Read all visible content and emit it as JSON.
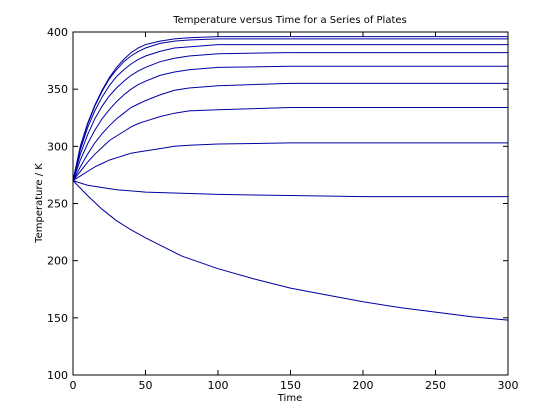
{
  "chart_data": {
    "type": "line",
    "title": "Temperature versus Time for a Series of Plates",
    "xlabel": "Time",
    "ylabel": "Temperature / K",
    "xlim": [
      0,
      300
    ],
    "ylim": [
      100,
      400
    ],
    "xticks": [
      0,
      50,
      100,
      150,
      200,
      250,
      300
    ],
    "yticks": [
      100,
      150,
      200,
      250,
      300,
      350,
      400
    ],
    "grid": false,
    "line_color": "#0000a0",
    "series": [
      {
        "values": [
          [
            0,
            270
          ],
          [
            5,
            300
          ],
          [
            10,
            320
          ],
          [
            15,
            336
          ],
          [
            20,
            349
          ],
          [
            25,
            360
          ],
          [
            30,
            369
          ],
          [
            35,
            376
          ],
          [
            40,
            382
          ],
          [
            45,
            386
          ],
          [
            50,
            389
          ],
          [
            60,
            392
          ],
          [
            70,
            394
          ],
          [
            80,
            395
          ],
          [
            100,
            396
          ],
          [
            150,
            396
          ],
          [
            200,
            396
          ],
          [
            250,
            396
          ],
          [
            300,
            396
          ]
        ]
      },
      {
        "values": [
          [
            0,
            270
          ],
          [
            5,
            299
          ],
          [
            10,
            319
          ],
          [
            15,
            335
          ],
          [
            20,
            348
          ],
          [
            25,
            359
          ],
          [
            30,
            367
          ],
          [
            35,
            374
          ],
          [
            40,
            379
          ],
          [
            45,
            383
          ],
          [
            50,
            386
          ],
          [
            60,
            390
          ],
          [
            70,
            392
          ],
          [
            80,
            393
          ],
          [
            100,
            394
          ],
          [
            150,
            394
          ],
          [
            200,
            394
          ],
          [
            250,
            394
          ],
          [
            300,
            394
          ]
        ]
      },
      {
        "values": [
          [
            0,
            270
          ],
          [
            5,
            297
          ],
          [
            10,
            316
          ],
          [
            15,
            331
          ],
          [
            20,
            343
          ],
          [
            25,
            353
          ],
          [
            30,
            361
          ],
          [
            35,
            367
          ],
          [
            40,
            372
          ],
          [
            45,
            376
          ],
          [
            50,
            379
          ],
          [
            60,
            383
          ],
          [
            70,
            386
          ],
          [
            80,
            387
          ],
          [
            100,
            389
          ],
          [
            150,
            389
          ],
          [
            200,
            389
          ],
          [
            250,
            389
          ],
          [
            300,
            389
          ]
        ]
      },
      {
        "values": [
          [
            0,
            270
          ],
          [
            5,
            293
          ],
          [
            10,
            310
          ],
          [
            15,
            324
          ],
          [
            20,
            335
          ],
          [
            25,
            344
          ],
          [
            30,
            351
          ],
          [
            35,
            357
          ],
          [
            40,
            362
          ],
          [
            45,
            366
          ],
          [
            50,
            369
          ],
          [
            60,
            374
          ],
          [
            70,
            377
          ],
          [
            80,
            379
          ],
          [
            100,
            381
          ],
          [
            150,
            382
          ],
          [
            200,
            382
          ],
          [
            250,
            382
          ],
          [
            300,
            382
          ]
        ]
      },
      {
        "values": [
          [
            0,
            270
          ],
          [
            5,
            288
          ],
          [
            10,
            302
          ],
          [
            15,
            314
          ],
          [
            20,
            324
          ],
          [
            25,
            332
          ],
          [
            30,
            339
          ],
          [
            35,
            345
          ],
          [
            40,
            350
          ],
          [
            45,
            354
          ],
          [
            50,
            357
          ],
          [
            60,
            362
          ],
          [
            70,
            365
          ],
          [
            80,
            367
          ],
          [
            100,
            369
          ],
          [
            150,
            370
          ],
          [
            200,
            370
          ],
          [
            250,
            370
          ],
          [
            300,
            370
          ]
        ]
      },
      {
        "values": [
          [
            0,
            270
          ],
          [
            5,
            282
          ],
          [
            10,
            293
          ],
          [
            15,
            303
          ],
          [
            20,
            311
          ],
          [
            25,
            318
          ],
          [
            30,
            324
          ],
          [
            35,
            329
          ],
          [
            40,
            334
          ],
          [
            45,
            337
          ],
          [
            50,
            340
          ],
          [
            60,
            345
          ],
          [
            70,
            349
          ],
          [
            80,
            351
          ],
          [
            100,
            353
          ],
          [
            150,
            355
          ],
          [
            200,
            355
          ],
          [
            250,
            355
          ],
          [
            300,
            355
          ]
        ]
      },
      {
        "values": [
          [
            0,
            270
          ],
          [
            5,
            278
          ],
          [
            10,
            286
          ],
          [
            15,
            293
          ],
          [
            20,
            299
          ],
          [
            25,
            305
          ],
          [
            30,
            309
          ],
          [
            35,
            313
          ],
          [
            40,
            317
          ],
          [
            45,
            320
          ],
          [
            50,
            322
          ],
          [
            60,
            326
          ],
          [
            70,
            329
          ],
          [
            80,
            331
          ],
          [
            100,
            332
          ],
          [
            150,
            334
          ],
          [
            200,
            334
          ],
          [
            250,
            334
          ],
          [
            300,
            334
          ]
        ]
      },
      {
        "values": [
          [
            0,
            270
          ],
          [
            5,
            274
          ],
          [
            10,
            278
          ],
          [
            15,
            282
          ],
          [
            20,
            285
          ],
          [
            25,
            288
          ],
          [
            30,
            290
          ],
          [
            35,
            292
          ],
          [
            40,
            294
          ],
          [
            45,
            295
          ],
          [
            50,
            296
          ],
          [
            60,
            298
          ],
          [
            70,
            300
          ],
          [
            80,
            301
          ],
          [
            100,
            302
          ],
          [
            150,
            303
          ],
          [
            200,
            303
          ],
          [
            250,
            303
          ],
          [
            300,
            303
          ]
        ]
      },
      {
        "values": [
          [
            0,
            270
          ],
          [
            10,
            266
          ],
          [
            20,
            264
          ],
          [
            30,
            262
          ],
          [
            40,
            261
          ],
          [
            50,
            260
          ],
          [
            75,
            259
          ],
          [
            100,
            258
          ],
          [
            150,
            257
          ],
          [
            200,
            256
          ],
          [
            250,
            256
          ],
          [
            300,
            256
          ]
        ]
      },
      {
        "values": [
          [
            0,
            270
          ],
          [
            10,
            257
          ],
          [
            20,
            245
          ],
          [
            30,
            235
          ],
          [
            40,
            227
          ],
          [
            50,
            220
          ],
          [
            75,
            204
          ],
          [
            100,
            193
          ],
          [
            125,
            184
          ],
          [
            150,
            176
          ],
          [
            175,
            170
          ],
          [
            200,
            164
          ],
          [
            225,
            159
          ],
          [
            250,
            155
          ],
          [
            275,
            151
          ],
          [
            300,
            148
          ]
        ]
      }
    ]
  }
}
